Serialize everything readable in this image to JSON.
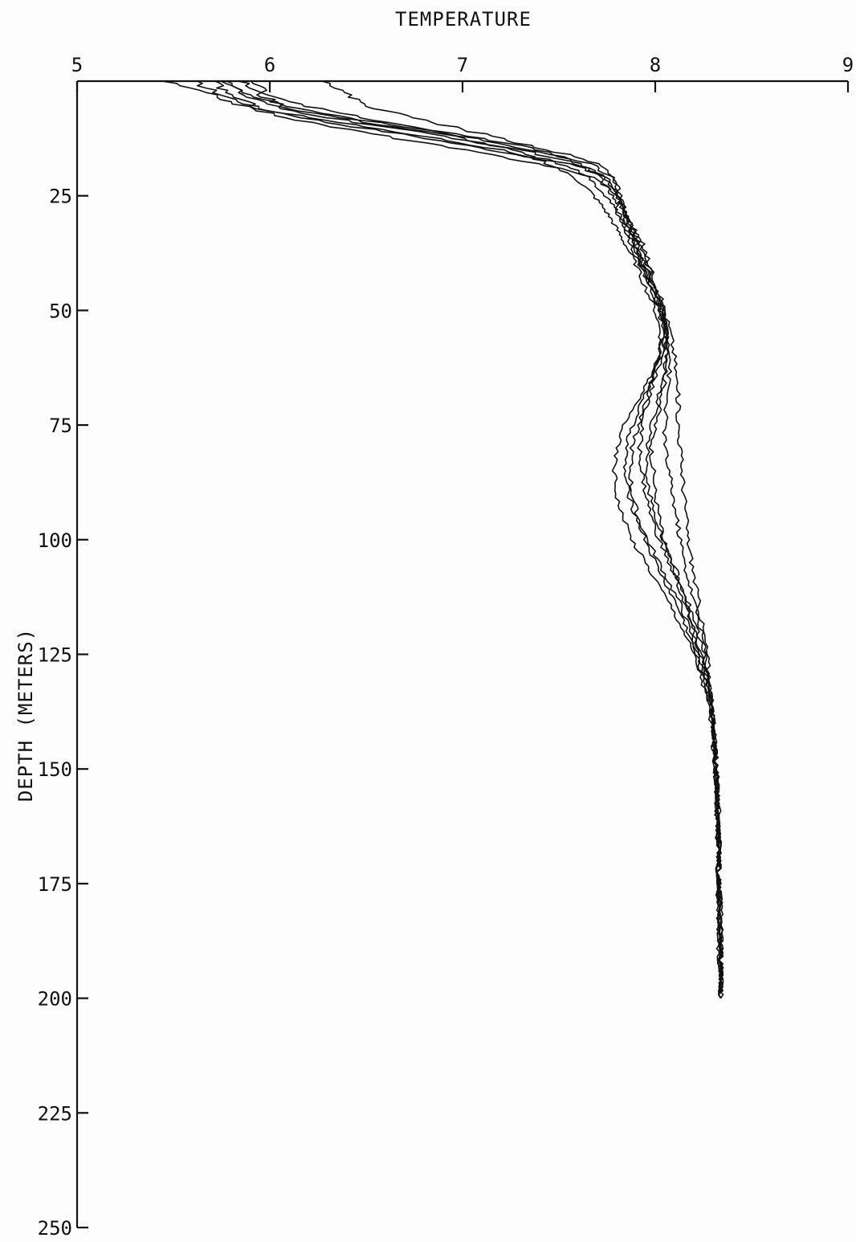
{
  "chart_data": {
    "type": "line",
    "title": "",
    "xlabel": "TEMPERATURE",
    "ylabel": "DEPTH (METERS)",
    "x_axis_position": "top",
    "y_axis_inverted": true,
    "xlim": [
      5,
      9
    ],
    "ylim": [
      0,
      250
    ],
    "x_ticks": [
      5,
      6,
      7,
      8,
      9
    ],
    "y_ticks": [
      25,
      50,
      75,
      100,
      125,
      150,
      175,
      200,
      225,
      250
    ],
    "x_tick_labels": [
      "5",
      "6",
      "7",
      "8",
      "9"
    ],
    "y_tick_labels": [
      "25",
      "50",
      "75",
      "100",
      "125",
      "150",
      "175",
      "200",
      "225",
      "250"
    ],
    "grid": false,
    "legend": "none",
    "line_color": "#111111",
    "series": [
      {
        "depth": [
          0,
          3,
          6,
          9,
          12,
          15,
          18,
          21,
          24,
          27,
          30,
          33,
          36,
          40,
          45,
          50,
          55,
          60,
          65,
          70,
          75,
          80,
          85,
          90,
          95,
          100,
          105,
          110,
          115,
          120,
          125,
          130,
          135,
          140,
          145,
          150,
          155,
          160,
          165,
          170,
          175,
          180,
          185,
          190,
          195,
          200
        ],
        "temperature": [
          5.6,
          5.75,
          5.95,
          6.3,
          6.75,
          7.15,
          7.55,
          7.75,
          7.8,
          7.82,
          7.84,
          7.87,
          7.9,
          7.93,
          7.98,
          8.03,
          8.06,
          8.07,
          8.05,
          8.03,
          8.0,
          7.98,
          7.99,
          8.0,
          8.02,
          8.04,
          8.08,
          8.13,
          8.17,
          8.2,
          8.23,
          8.26,
          8.29,
          8.3,
          8.31,
          8.32,
          8.32,
          8.33,
          8.32,
          8.33,
          8.33,
          8.33,
          8.33,
          8.34,
          8.34,
          8.34
        ]
      },
      {
        "depth": [
          0,
          3,
          6,
          9,
          12,
          15,
          18,
          21,
          24,
          27,
          30,
          33,
          36,
          40,
          45,
          50,
          55,
          60,
          65,
          70,
          75,
          80,
          85,
          90,
          95,
          100,
          105,
          110,
          115,
          120,
          125,
          130,
          135,
          140,
          145,
          150,
          155,
          160,
          165,
          170,
          175,
          180,
          185,
          190,
          195,
          200
        ],
        "temperature": [
          5.8,
          5.85,
          6.05,
          6.45,
          6.9,
          7.3,
          7.6,
          7.72,
          7.76,
          7.8,
          7.82,
          7.85,
          7.88,
          7.92,
          7.97,
          8.02,
          8.04,
          8.02,
          7.98,
          7.93,
          7.88,
          7.85,
          7.84,
          7.86,
          7.9,
          7.95,
          8.0,
          8.06,
          8.12,
          8.17,
          8.21,
          8.25,
          8.28,
          8.3,
          8.31,
          8.31,
          8.32,
          8.32,
          8.33,
          8.33,
          8.32,
          8.33,
          8.33,
          8.33,
          8.34,
          8.34
        ]
      },
      {
        "depth": [
          0,
          3,
          6,
          9,
          12,
          15,
          18,
          21,
          24,
          27,
          30,
          33,
          36,
          40,
          45,
          50,
          55,
          60,
          65,
          70,
          75,
          80,
          85,
          90,
          95,
          100,
          105,
          110,
          115,
          120,
          125,
          130,
          135,
          140,
          145,
          150,
          155,
          160,
          165,
          170,
          175,
          180,
          185,
          190,
          195,
          200
        ],
        "temperature": [
          5.45,
          5.7,
          5.9,
          6.2,
          6.6,
          7.0,
          7.4,
          7.68,
          7.78,
          7.83,
          7.86,
          7.9,
          7.94,
          7.97,
          8.01,
          8.05,
          8.08,
          8.1,
          8.11,
          8.12,
          8.12,
          8.13,
          8.14,
          8.15,
          8.16,
          8.17,
          8.19,
          8.21,
          8.23,
          8.25,
          8.27,
          8.28,
          8.29,
          8.3,
          8.31,
          8.32,
          8.32,
          8.32,
          8.33,
          8.33,
          8.33,
          8.34,
          8.34,
          8.33,
          8.34,
          8.34
        ]
      },
      {
        "depth": [
          0,
          3,
          6,
          9,
          12,
          15,
          18,
          21,
          24,
          27,
          30,
          33,
          36,
          40,
          45,
          50,
          55,
          60,
          65,
          70,
          75,
          80,
          85,
          90,
          95,
          100,
          105,
          110,
          115,
          120,
          125,
          130,
          135,
          140,
          145,
          150,
          155,
          160,
          165,
          170,
          175,
          180,
          185,
          190,
          195,
          200
        ],
        "temperature": [
          5.9,
          6.0,
          6.25,
          6.6,
          7.0,
          7.35,
          7.65,
          7.78,
          7.8,
          7.82,
          7.85,
          7.88,
          7.91,
          7.95,
          8.0,
          8.04,
          8.06,
          8.04,
          8.0,
          7.96,
          7.93,
          7.92,
          7.93,
          7.95,
          7.98,
          8.02,
          8.07,
          8.12,
          8.16,
          8.2,
          8.24,
          8.27,
          8.29,
          8.3,
          8.31,
          8.32,
          8.32,
          8.33,
          8.33,
          8.33,
          8.33,
          8.34,
          8.33,
          8.34,
          8.34,
          8.34
        ]
      },
      {
        "depth": [
          0,
          3,
          6,
          9,
          12,
          15,
          18,
          21,
          24,
          27,
          30,
          33,
          36,
          40,
          45,
          50,
          55,
          60,
          65,
          70,
          75,
          80,
          85,
          90,
          95,
          100,
          105,
          110,
          115,
          120,
          125,
          130,
          135,
          140,
          145,
          150,
          155,
          160,
          165,
          170,
          175,
          180,
          185,
          190,
          195,
          200
        ],
        "temperature": [
          5.7,
          5.8,
          5.95,
          6.35,
          6.8,
          7.2,
          7.5,
          7.65,
          7.72,
          7.78,
          7.82,
          7.86,
          7.89,
          7.93,
          7.98,
          8.03,
          8.05,
          8.03,
          7.97,
          7.9,
          7.84,
          7.8,
          7.79,
          7.8,
          7.83,
          7.88,
          7.95,
          8.02,
          8.09,
          8.15,
          8.2,
          8.24,
          8.27,
          8.29,
          8.3,
          8.31,
          8.32,
          8.32,
          8.33,
          8.33,
          8.33,
          8.33,
          8.34,
          8.34,
          8.34,
          8.34
        ]
      },
      {
        "depth": [
          0,
          3,
          6,
          9,
          12,
          15,
          18,
          21,
          24,
          27,
          30,
          33,
          36,
          40,
          45,
          50,
          55,
          60,
          65,
          70,
          75,
          80,
          85,
          90,
          95,
          100,
          105,
          110,
          115,
          120,
          125,
          130,
          135,
          140,
          145,
          150,
          155,
          160,
          165,
          170,
          175,
          180,
          185,
          190,
          195,
          200
        ],
        "temperature": [
          6.3,
          6.4,
          6.55,
          6.85,
          7.15,
          7.45,
          7.7,
          7.79,
          7.81,
          7.83,
          7.86,
          7.89,
          7.92,
          7.96,
          8.0,
          8.04,
          8.07,
          8.08,
          8.07,
          8.06,
          8.05,
          8.05,
          8.07,
          8.09,
          8.11,
          8.13,
          8.15,
          8.18,
          8.21,
          8.24,
          8.26,
          8.28,
          8.29,
          8.3,
          8.31,
          8.32,
          8.32,
          8.33,
          8.33,
          8.33,
          8.33,
          8.34,
          8.34,
          8.34,
          8.34,
          8.34
        ]
      },
      {
        "depth": [
          0,
          3,
          6,
          9,
          12,
          15,
          18,
          21,
          24,
          27,
          30,
          33,
          36,
          40,
          45,
          50,
          55,
          60,
          65,
          70,
          75,
          80,
          85,
          90,
          95,
          100,
          105,
          110,
          115,
          120,
          125,
          130,
          135,
          140,
          145,
          150,
          155,
          160,
          165,
          170,
          175,
          180,
          185,
          190,
          195,
          200
        ],
        "temperature": [
          5.85,
          5.95,
          6.1,
          6.5,
          6.95,
          7.25,
          7.45,
          7.58,
          7.66,
          7.72,
          7.77,
          7.81,
          7.85,
          7.9,
          7.95,
          8.0,
          8.03,
          8.02,
          7.99,
          7.95,
          7.91,
          7.88,
          7.87,
          7.88,
          7.91,
          7.96,
          8.02,
          8.08,
          8.14,
          8.18,
          8.22,
          8.26,
          8.28,
          8.3,
          8.31,
          8.31,
          8.32,
          8.32,
          8.33,
          8.33,
          8.33,
          8.33,
          8.34,
          8.34,
          8.34,
          8.34
        ]
      },
      {
        "depth": [
          0,
          3,
          6,
          9,
          12,
          15,
          18,
          21,
          24,
          27,
          30,
          33,
          36,
          40,
          45,
          50,
          55,
          60,
          65,
          70,
          75,
          80,
          85,
          90,
          95,
          100,
          105,
          110,
          115,
          120,
          125,
          130,
          135,
          140,
          145,
          150,
          155,
          160,
          165,
          170,
          175,
          180,
          185,
          190,
          195,
          200
        ],
        "temperature": [
          5.75,
          5.9,
          6.15,
          6.55,
          7.05,
          7.4,
          7.62,
          7.74,
          7.79,
          7.82,
          7.85,
          7.88,
          7.9,
          7.94,
          7.99,
          8.03,
          8.06,
          8.06,
          8.04,
          8.01,
          7.98,
          7.96,
          7.96,
          7.97,
          8.0,
          8.04,
          8.09,
          8.14,
          8.18,
          8.22,
          8.25,
          8.27,
          8.29,
          8.3,
          8.31,
          8.32,
          8.32,
          8.32,
          8.33,
          8.33,
          8.33,
          8.34,
          8.34,
          8.34,
          8.34,
          8.34
        ]
      }
    ]
  }
}
